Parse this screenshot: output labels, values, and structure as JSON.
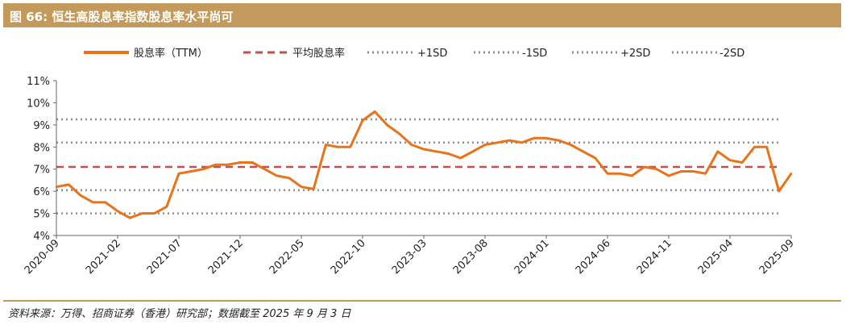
{
  "title": "图 66:  恒生高股息率指数股息率水平尚可",
  "source": "资料来源：万得、招商证券（香港）研究部；数据截至 2025 年 9 月 3 日",
  "colors": {
    "title_bg": "#c49a5c",
    "series": "#e8731a",
    "mean": "#c0504d",
    "sd": "#8c8c8c"
  },
  "chart_data": {
    "type": "line",
    "ylim": [
      4,
      11
    ],
    "y_ticks": [
      "4%",
      "5%",
      "6%",
      "7%",
      "8%",
      "9%",
      "10%",
      "11%"
    ],
    "x_ticks": [
      "2020-09",
      "2021-02",
      "2021-07",
      "2021-12",
      "2022-05",
      "2022-10",
      "2023-03",
      "2023-08",
      "2024-01",
      "2024-06",
      "2024-11",
      "2025-04",
      "2025-09"
    ],
    "legend_position": "top",
    "series": [
      {
        "name": "股息率（TTM）",
        "x": [
          "2020-09",
          "2020-10",
          "2020-11",
          "2020-12",
          "2021-01",
          "2021-02",
          "2021-03",
          "2021-04",
          "2021-05",
          "2021-06",
          "2021-07",
          "2021-08",
          "2021-09",
          "2021-10",
          "2021-11",
          "2021-12",
          "2022-01",
          "2022-02",
          "2022-03",
          "2022-04",
          "2022-05",
          "2022-06",
          "2022-07",
          "2022-08",
          "2022-09",
          "2022-10",
          "2022-11",
          "2022-12",
          "2023-01",
          "2023-02",
          "2023-03",
          "2023-04",
          "2023-05",
          "2023-06",
          "2023-07",
          "2023-08",
          "2023-09",
          "2023-10",
          "2023-11",
          "2023-12",
          "2024-01",
          "2024-02",
          "2024-03",
          "2024-04",
          "2024-05",
          "2024-06",
          "2024-07",
          "2024-08",
          "2024-09",
          "2024-10",
          "2024-11",
          "2024-12",
          "2025-01",
          "2025-02",
          "2025-03",
          "2025-04",
          "2025-05",
          "2025-06",
          "2025-07",
          "2025-08",
          "2025-09"
        ],
        "values": [
          6.2,
          6.3,
          5.8,
          5.5,
          5.5,
          5.1,
          4.8,
          5.0,
          5.0,
          5.3,
          6.8,
          6.9,
          7.0,
          7.2,
          7.2,
          7.3,
          7.3,
          7.0,
          6.7,
          6.6,
          6.2,
          6.1,
          8.1,
          8.0,
          8.0,
          9.2,
          9.6,
          9.0,
          8.6,
          8.1,
          7.9,
          7.8,
          7.7,
          7.5,
          7.8,
          8.1,
          8.2,
          8.3,
          8.2,
          8.4,
          8.4,
          8.3,
          8.1,
          7.8,
          7.5,
          6.8,
          6.8,
          6.7,
          7.1,
          7.0,
          6.7,
          6.9,
          6.9,
          6.8,
          7.8,
          7.4,
          7.3,
          8.0,
          8.0,
          6.0,
          6.8
        ]
      },
      {
        "name": "平均股息率",
        "value": 7.1
      },
      {
        "name": "+1SD",
        "value": 8.2
      },
      {
        "name": "-1SD",
        "value": 6.05
      },
      {
        "name": "+2SD",
        "value": 9.25
      },
      {
        "name": "-2SD",
        "value": 5.0
      }
    ]
  }
}
